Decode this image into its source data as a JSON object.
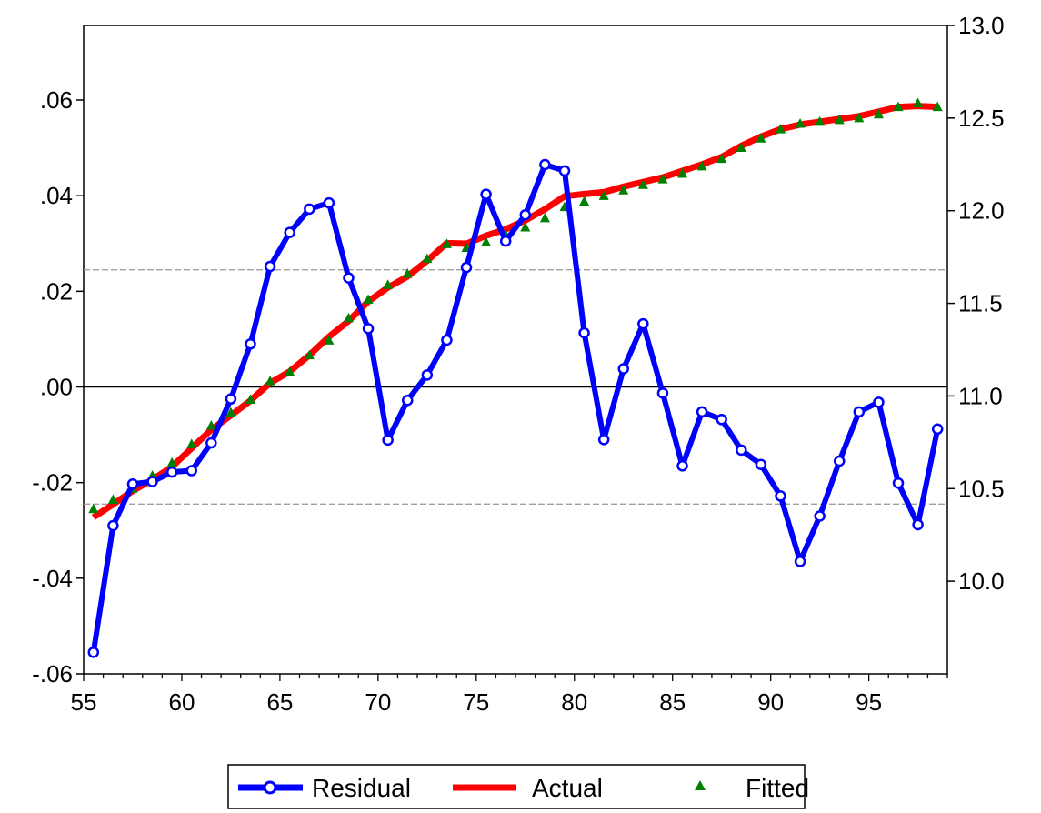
{
  "chart_data": {
    "type": "line",
    "x": [
      55.5,
      56.5,
      57.5,
      58.5,
      59.5,
      60.5,
      61.5,
      62.5,
      63.5,
      64.5,
      65.5,
      66.5,
      67.5,
      68.5,
      69.5,
      70.5,
      71.5,
      72.5,
      73.5,
      74.5,
      75.5,
      76.5,
      77.5,
      78.5,
      79.5,
      80.5,
      81.5,
      82.5,
      83.5,
      84.5,
      85.5,
      86.5,
      87.5,
      88.5,
      89.5,
      90.5,
      91.5,
      92.5,
      93.5,
      94.5,
      95.5,
      96.5,
      97.5,
      98.5
    ],
    "xlim": [
      55,
      99
    ],
    "x_ticks": [
      "55",
      "60",
      "65",
      "70",
      "75",
      "80",
      "85",
      "90",
      "95"
    ],
    "left_axis": {
      "ylim": [
        -0.06,
        0.0756
      ],
      "ticks": [
        {
          "value": -0.06,
          "label": "-.06"
        },
        {
          "value": -0.04,
          "label": "-.04"
        },
        {
          "value": -0.02,
          "label": "-.02"
        },
        {
          "value": 0.0,
          "label": ".00"
        },
        {
          "value": 0.02,
          "label": ".02"
        },
        {
          "value": 0.04,
          "label": ".04"
        },
        {
          "value": 0.06,
          "label": ".06"
        }
      ],
      "zero_line": 0.0,
      "band_lines": [
        0.0245,
        -0.0245
      ]
    },
    "right_axis": {
      "ylim": [
        9.5,
        13.0
      ],
      "ticks": [
        {
          "value": 10.0,
          "label": "10.0"
        },
        {
          "value": 10.5,
          "label": "10.5"
        },
        {
          "value": 11.0,
          "label": "11.0"
        },
        {
          "value": 11.5,
          "label": "11.5"
        },
        {
          "value": 12.0,
          "label": "12.0"
        },
        {
          "value": 12.5,
          "label": "12.5"
        },
        {
          "value": 13.0,
          "label": "13.0"
        }
      ]
    },
    "series": [
      {
        "name": "Residual",
        "axis": "left",
        "style": "line-with-circles",
        "color": "#0000ff",
        "values": [
          -0.0555,
          -0.029,
          -0.0203,
          -0.0198,
          -0.0178,
          -0.0175,
          -0.0117,
          -0.0025,
          0.009,
          0.0252,
          0.0323,
          0.0372,
          0.0385,
          0.0228,
          0.0122,
          -0.0111,
          -0.0028,
          0.0025,
          0.0098,
          0.025,
          0.0403,
          0.0305,
          0.036,
          0.0465,
          0.0452,
          0.0113,
          -0.011,
          0.0038,
          0.0132,
          -0.0013,
          -0.0165,
          -0.0052,
          -0.0068,
          -0.0132,
          -0.0162,
          -0.0228,
          -0.0365,
          -0.027,
          -0.0155,
          -0.0052,
          -0.0032,
          -0.0201,
          -0.0288,
          -0.0088
        ]
      },
      {
        "name": "Actual",
        "axis": "right",
        "style": "thick-line",
        "color": "#ff0000",
        "values": [
          10.345,
          10.415,
          10.488,
          10.548,
          10.618,
          10.718,
          10.818,
          10.895,
          10.975,
          11.07,
          11.132,
          11.22,
          11.32,
          11.405,
          11.51,
          11.585,
          11.645,
          11.73,
          11.825,
          11.822,
          11.865,
          11.9,
          11.948,
          12.008,
          12.078,
          12.09,
          12.1,
          12.13,
          12.155,
          12.18,
          12.215,
          12.25,
          12.29,
          12.35,
          12.4,
          12.44,
          12.465,
          12.48,
          12.495,
          12.51,
          12.535,
          12.56,
          12.565,
          12.56
        ]
      },
      {
        "name": "Fitted",
        "axis": "right",
        "style": "triangle-markers",
        "color": "#008000",
        "values": [
          10.39,
          10.44,
          10.5,
          10.57,
          10.64,
          10.74,
          10.84,
          10.91,
          10.98,
          11.08,
          11.13,
          11.22,
          11.3,
          11.42,
          11.52,
          11.6,
          11.66,
          11.74,
          11.82,
          11.8,
          11.83,
          11.87,
          11.91,
          11.96,
          12.02,
          12.05,
          12.08,
          12.11,
          12.14,
          12.17,
          12.2,
          12.24,
          12.28,
          12.34,
          12.39,
          12.44,
          12.47,
          12.48,
          12.49,
          12.5,
          12.52,
          12.56,
          12.58,
          12.56
        ]
      }
    ],
    "legend": {
      "position": "bottom-center",
      "entries": [
        "Residual",
        "Actual",
        "Fitted"
      ]
    }
  }
}
